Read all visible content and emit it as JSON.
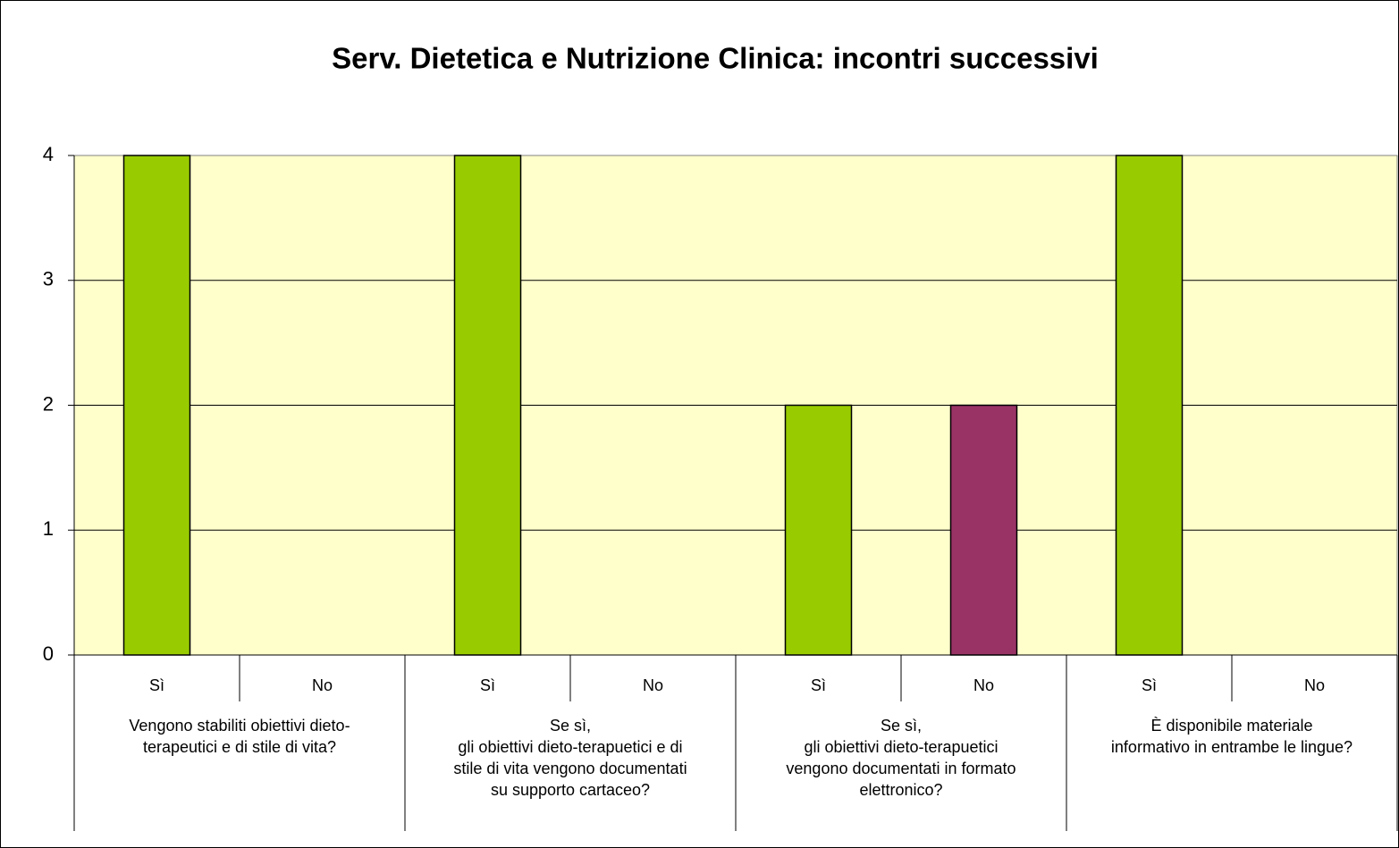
{
  "chart_data": {
    "type": "bar",
    "title": "Serv. Dietetica e Nutrizione Clinica: incontri successivi",
    "categories": [
      "Sì",
      "No",
      "Sì",
      "No",
      "Sì",
      "No",
      "Sì",
      "No"
    ],
    "values": [
      4,
      0,
      4,
      0,
      2,
      2,
      4,
      0
    ],
    "colors": [
      "#99cc00",
      "#993366",
      "#99cc00",
      "#993366",
      "#99cc00",
      "#993366",
      "#99cc00",
      "#993366"
    ],
    "groups": [
      {
        "label": [
          "Vengono stabiliti obiettivi dieto-",
          "terapeutici e di stile di vita?"
        ]
      },
      {
        "label": [
          "Se sì,",
          "gli obiettivi dieto-terapuetici e di",
          "stile di vita vengono documentati",
          "su supporto cartaceo?"
        ]
      },
      {
        "label": [
          "Se sì,",
          "gli obiettivi dieto-terapuetici",
          "vengono documentati in formato",
          "elettronico?"
        ]
      },
      {
        "label": [
          "È disponibile materiale",
          "informativo in entrambe le lingue?"
        ]
      }
    ],
    "ylim": [
      0,
      4
    ],
    "yticks": [
      0,
      1,
      2,
      3,
      4
    ],
    "grid": true
  }
}
